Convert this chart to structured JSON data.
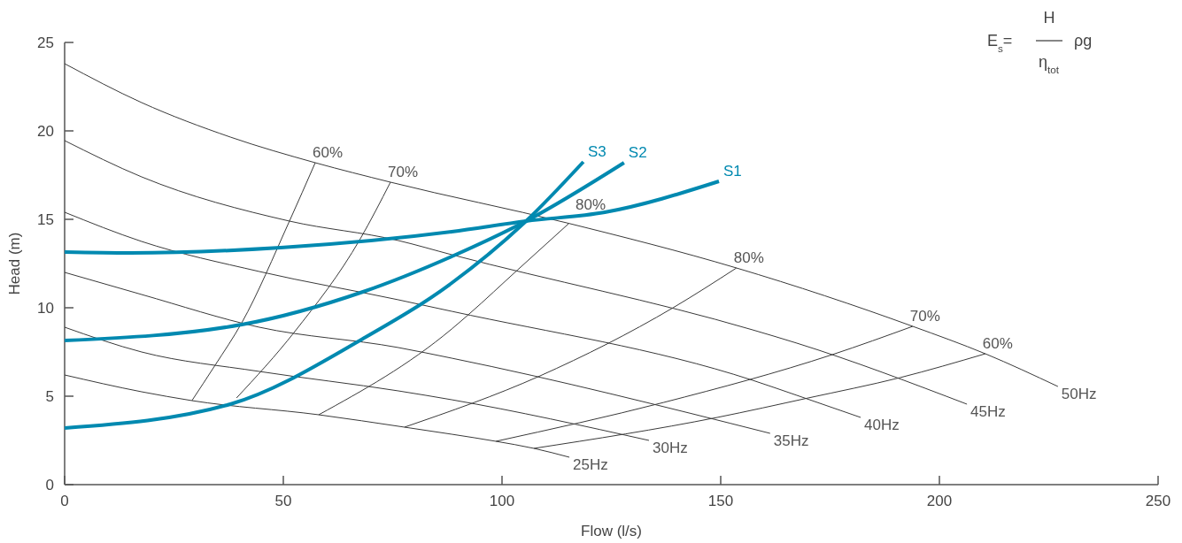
{
  "chart_data": {
    "type": "line",
    "xlabel": "Flow (l/s)",
    "ylabel": "Head (m)",
    "xlim": [
      0,
      250
    ],
    "ylim": [
      0,
      25
    ],
    "xticks": [
      0,
      50,
      100,
      150,
      200,
      250
    ],
    "yticks": [
      0,
      5,
      10,
      15,
      20,
      25
    ],
    "grid": false,
    "marker": "none",
    "line_style": "solid",
    "annotations": [
      "E$_{s}$=",
      "H",
      "η$_{tot}$",
      "ρg"
    ],
    "series": [
      {
        "name": "25Hz",
        "color": "#3a3a3a",
        "x": [
          0,
          17.6,
          29.1,
          58.1,
          77.7,
          88.5,
          98.6,
          107.3,
          115.4
        ],
        "values": [
          6.2,
          5.25,
          4.75,
          3.95,
          3.25,
          2.85,
          2.45,
          2.05,
          1.55
        ]
      },
      {
        "name": "30Hz",
        "color": "#3a3a3a",
        "x": [
          0,
          17.6,
          44.5,
          76.3,
          88.5,
          133.6
        ],
        "values": [
          8.9,
          7.5,
          6.4,
          5.3,
          4.8,
          2.5
        ]
      },
      {
        "name": "35Hz",
        "color": "#3a3a3a",
        "x": [
          0,
          17.6,
          44.5,
          76.3,
          88.5,
          161.3
        ],
        "values": [
          12.0,
          10.75,
          8.9,
          7.75,
          7.15,
          2.9
        ]
      },
      {
        "name": "40Hz",
        "color": "#3a3a3a",
        "x": [
          0,
          17.6,
          44.5,
          76.3,
          88.5,
          157.3,
          167.4,
          182
        ],
        "values": [
          15.4,
          13.75,
          12.05,
          10.45,
          9.8,
          5.9,
          5.05,
          3.8
        ]
      },
      {
        "name": "45Hz",
        "color": "#3a3a3a",
        "x": [
          0,
          17.6,
          51.4,
          76.3,
          88.5,
          157.3,
          167.4,
          206.3
        ],
        "values": [
          19.45,
          17.4,
          14.9,
          13.8,
          13.0,
          8.75,
          8.0,
          4.55
        ]
      },
      {
        "name": "50Hz",
        "color": "#3a3a3a",
        "x": [
          0,
          17.6,
          37.9,
          57.3,
          74.5,
          114.8,
          153.6,
          193.9,
          210.5,
          227.1
        ],
        "values": [
          23.8,
          21.6,
          19.65,
          18.2,
          17.1,
          14.8,
          12.25,
          8.95,
          7.4,
          5.55
        ]
      },
      {
        "name": "60%",
        "color": "#3a3a3a",
        "x": [
          29.1,
          34.4,
          40.5,
          51.4,
          57.3
        ],
        "values": [
          4.75,
          6.75,
          9.15,
          14.9,
          18.2
        ]
      },
      {
        "name": "70%",
        "color": "#3a3a3a",
        "x": [
          39.3,
          52.6,
          67.6,
          74.5
        ],
        "values": [
          4.9,
          8.65,
          13.9,
          17.1
        ]
      },
      {
        "name": "80%",
        "color": "#3a3a3a",
        "x": [
          58.1,
          88.5,
          92.5,
          103.6,
          115.2
        ],
        "values": [
          3.95,
          8.8,
          9.65,
          12.15,
          14.75
        ]
      },
      {
        "name": "80%",
        "color": "#3a3a3a",
        "x": [
          77.7,
          108.7,
          139.1,
          153.6
        ],
        "values": [
          3.25,
          6.15,
          10.0,
          12.25
        ]
      },
      {
        "name": "70%",
        "color": "#3a3a3a",
        "x": [
          98.6,
          137,
          175.5,
          193.9
        ],
        "values": [
          2.45,
          4.65,
          7.35,
          8.95
        ]
      },
      {
        "name": "60%",
        "color": "#3a3a3a",
        "x": [
          107.3,
          149.2,
          170,
          191,
          210.5
        ],
        "values": [
          2.05,
          3.8,
          4.9,
          6.05,
          7.4
        ]
      },
      {
        "name": "S1",
        "color": "#0089b0",
        "x": [
          0,
          15,
          49.4,
          88.5,
          105.5,
          123.5,
          149.6
        ],
        "values": [
          13.15,
          13.1,
          13.4,
          14.3,
          14.9,
          15.4,
          17.15
        ]
      },
      {
        "name": "S2",
        "color": "#0089b0",
        "x": [
          0,
          40.5,
          68.2,
          88.5,
          105.5,
          127.9
        ],
        "values": [
          8.15,
          9.05,
          10.9,
          12.9,
          14.9,
          18.2
        ]
      },
      {
        "name": "S3",
        "color": "#0089b0",
        "x": [
          0,
          37.9,
          68.2,
          88.5,
          105.5,
          118.6
        ],
        "values": [
          3.2,
          4.55,
          8.25,
          11.4,
          14.9,
          18.25
        ]
      }
    ]
  }
}
